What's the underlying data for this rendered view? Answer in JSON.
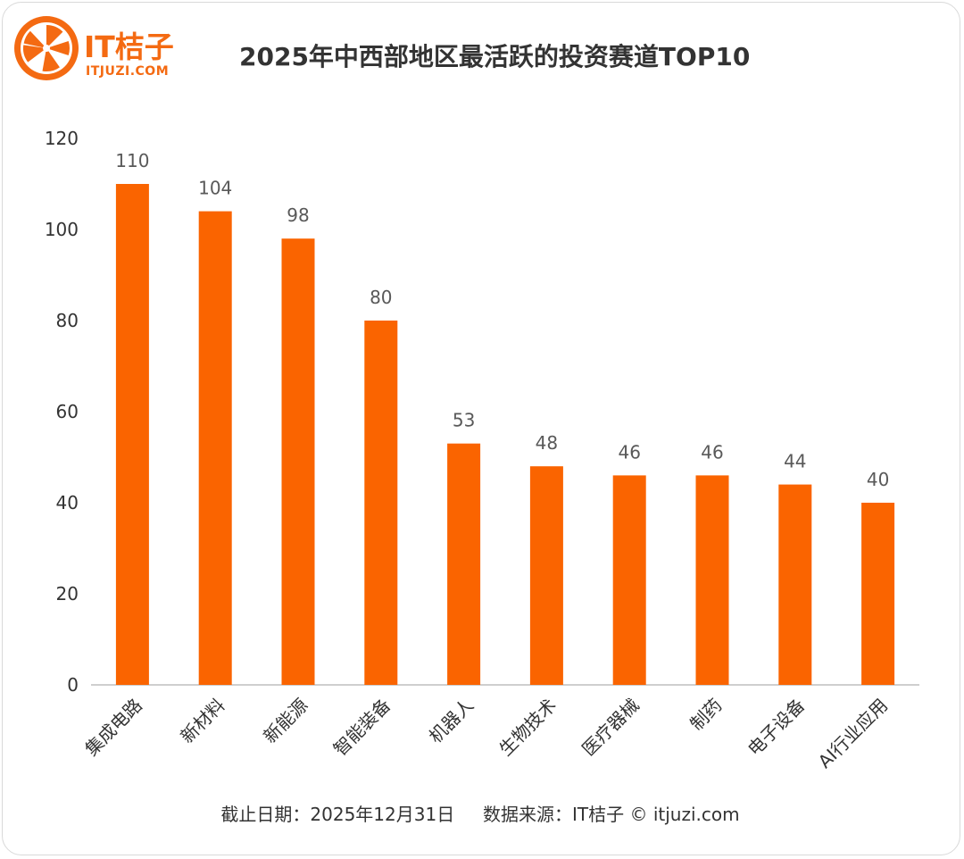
{
  "header": {
    "logo_name": "IT桔子",
    "logo_domain": "ITJUZI.COM",
    "title": "2025年中西部地区最活跃的投资赛道TOP10"
  },
  "footer": {
    "date_text": "截止日期：2025年12月31日",
    "source_text": "数据来源：IT桔子 © itjuzi.com"
  },
  "colors": {
    "bar": "#fa6400",
    "brand": "#f46a12",
    "axis": "#bfbfbf",
    "text": "#333333",
    "label": "#595959"
  },
  "chart_data": {
    "type": "bar",
    "title": "2025年中西部地区最活跃的投资赛道TOP10",
    "xlabel": "",
    "ylabel": "",
    "categories": [
      "集成电路",
      "新材料",
      "新能源",
      "智能装备",
      "机器人",
      "生物技术",
      "医疗器械",
      "制药",
      "电子设备",
      "AI行业应用"
    ],
    "values": [
      110,
      104,
      98,
      80,
      53,
      48,
      46,
      46,
      44,
      40
    ],
    "ylim": [
      0,
      120
    ],
    "yticks": [
      0,
      20,
      40,
      60,
      80,
      100,
      120
    ],
    "grid": false,
    "data_labels": true
  }
}
